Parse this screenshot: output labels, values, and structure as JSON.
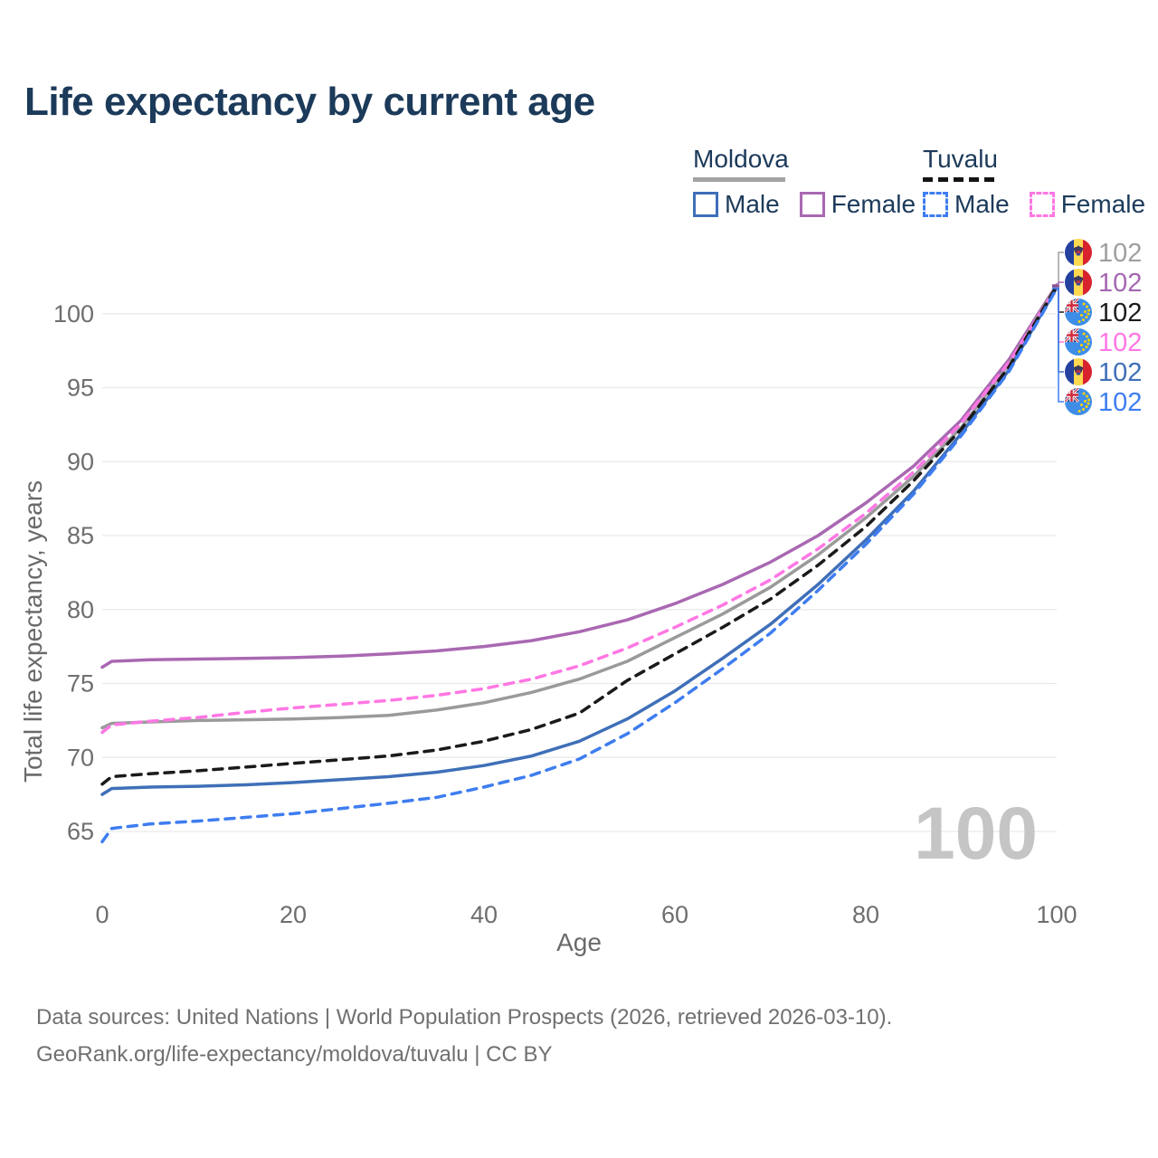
{
  "title": "Life expectancy by current age",
  "legend": {
    "groups": [
      {
        "id": "moldova",
        "name": "Moldova",
        "line_style": "solid",
        "items": [
          {
            "label": "Male",
            "color": "#3f6fb8"
          },
          {
            "label": "Female",
            "color": "#a968b2"
          }
        ]
      },
      {
        "id": "tuvalu",
        "name": "Tuvalu",
        "line_style": "dashed",
        "items": [
          {
            "label": "Male",
            "color": "#3e7df0"
          },
          {
            "label": "Female",
            "color": "#ff77e4"
          }
        ]
      }
    ]
  },
  "chart_data": {
    "type": "line",
    "title": "Life expectancy by current age",
    "xlabel": "Age",
    "ylabel": "Total life expectancy, years",
    "x_ticks": [
      0,
      20,
      40,
      60,
      80,
      100
    ],
    "y_ticks": [
      65,
      70,
      75,
      80,
      85,
      90,
      95,
      100
    ],
    "xlim": [
      0,
      100
    ],
    "ylim": [
      63.5,
      103
    ],
    "grid": "horizontal",
    "gridline_color": "#e9e9e9",
    "tick_label_color": "#6e6e6e",
    "hover_age_watermark": "100",
    "x": [
      0,
      1,
      5,
      10,
      15,
      20,
      25,
      30,
      35,
      40,
      45,
      50,
      55,
      60,
      65,
      70,
      75,
      80,
      85,
      90,
      95,
      100
    ],
    "series": [
      {
        "key": "md-female",
        "name": "Moldova Female",
        "country": "Moldova",
        "sex": "Female",
        "color": "#a968b2",
        "dash": null,
        "values": [
          76.1,
          76.5,
          76.6,
          76.65,
          76.7,
          76.75,
          76.85,
          77.0,
          77.2,
          77.5,
          77.9,
          78.5,
          79.3,
          80.4,
          81.7,
          83.2,
          85.0,
          87.2,
          89.7,
          92.8,
          96.9,
          101.95
        ]
      },
      {
        "key": "md-all",
        "name": "Moldova",
        "country": "Moldova",
        "sex": "Both",
        "color": "#9a9a9a",
        "dash": null,
        "values": [
          72.0,
          72.3,
          72.4,
          72.5,
          72.55,
          72.6,
          72.7,
          72.85,
          73.2,
          73.7,
          74.4,
          75.3,
          76.5,
          78.1,
          79.7,
          81.5,
          83.7,
          86.2,
          89.0,
          92.3,
          96.6,
          101.9
        ]
      },
      {
        "key": "md-male",
        "name": "Moldova Male",
        "country": "Moldova",
        "sex": "Male",
        "color": "#3f6fb8",
        "dash": null,
        "values": [
          67.5,
          67.9,
          68.0,
          68.05,
          68.15,
          68.3,
          68.5,
          68.7,
          69.0,
          69.45,
          70.1,
          71.1,
          72.6,
          74.5,
          76.7,
          79.0,
          81.7,
          84.7,
          88.0,
          91.9,
          96.2,
          101.75
        ]
      },
      {
        "key": "tv-female",
        "name": "Tuvalu Female",
        "country": "Tuvalu",
        "sex": "Female",
        "color": "#ff77e4",
        "dash": "10 8",
        "values": [
          71.7,
          72.2,
          72.45,
          72.7,
          73.05,
          73.35,
          73.6,
          73.85,
          74.2,
          74.65,
          75.3,
          76.2,
          77.4,
          78.8,
          80.3,
          82.0,
          84.1,
          86.5,
          89.3,
          92.6,
          96.7,
          101.8
        ]
      },
      {
        "key": "tv-all",
        "name": "Tuvalu",
        "country": "Tuvalu",
        "sex": "Both",
        "color": "#1a1a1a",
        "dash": "10 8",
        "values": [
          68.2,
          68.7,
          68.9,
          69.1,
          69.35,
          69.6,
          69.85,
          70.1,
          70.5,
          71.1,
          71.9,
          73.0,
          75.2,
          77.0,
          78.8,
          80.7,
          83.0,
          85.6,
          88.7,
          92.2,
          96.4,
          101.85
        ]
      },
      {
        "key": "tv-male",
        "name": "Tuvalu Male",
        "country": "Tuvalu",
        "sex": "Male",
        "color": "#3e7df0",
        "dash": "10 8",
        "values": [
          64.3,
          65.2,
          65.5,
          65.7,
          65.95,
          66.2,
          66.55,
          66.9,
          67.3,
          68.0,
          68.8,
          69.9,
          71.6,
          73.7,
          76.0,
          78.4,
          81.3,
          84.4,
          87.8,
          91.75,
          96.1,
          101.7
        ]
      }
    ],
    "legend_position": "top-right"
  },
  "end_labels": [
    {
      "flag": "moldova",
      "series": "md-all",
      "value": "102",
      "color": "#9f9f9f"
    },
    {
      "flag": "moldova",
      "series": "md-female",
      "value": "102",
      "color": "#a567b0"
    },
    {
      "flag": "tuvalu",
      "series": "tv-all",
      "value": "102",
      "color": "#1c1c1c"
    },
    {
      "flag": "tuvalu",
      "series": "tv-female",
      "value": "102",
      "color": "#ff77e4"
    },
    {
      "flag": "moldova",
      "series": "md-male",
      "value": "102",
      "color": "#3f6fb8"
    },
    {
      "flag": "tuvalu",
      "series": "tv-male",
      "value": "102",
      "color": "#3e7df0"
    }
  ],
  "footer": {
    "line1": "Data sources: United Nations | World Population Prospects (2026, retrieved 2026-03-10).",
    "line2": "GeoRank.org/life-expectancy/moldova/tuvalu | CC BY"
  }
}
